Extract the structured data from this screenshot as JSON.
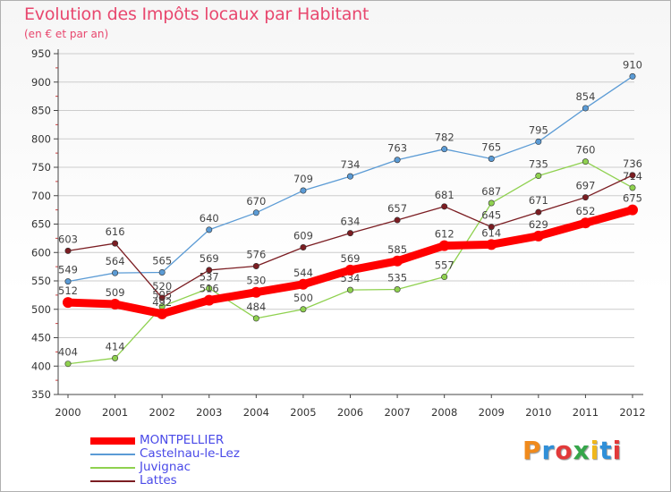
{
  "title": "Evolution des Impôts locaux par Habitant",
  "subtitle": "(en € et par an)",
  "logo_text": "Proxiti",
  "colors": {
    "title": "#e8476e",
    "legend_text": "#4a4ae8",
    "axis": "#444444",
    "grid": "#cccccc"
  },
  "chart_data": {
    "type": "line",
    "title": "Evolution des Impôts locaux par Habitant",
    "subtitle": "(en € et par an)",
    "xlabel": "",
    "ylabel": "",
    "ylim": [
      350,
      950
    ],
    "yticks": [
      350,
      400,
      450,
      500,
      550,
      600,
      650,
      700,
      750,
      800,
      850,
      900,
      950
    ],
    "grid": true,
    "legend_position": "bottom-left",
    "categories": [
      "2000",
      "2001",
      "2002",
      "2003",
      "2004",
      "2005",
      "2006",
      "2007",
      "2008",
      "2009",
      "2010",
      "2011",
      "2012"
    ],
    "series": [
      {
        "name": "MONTPELLIER",
        "color": "#ff0000",
        "emphasis": true,
        "values": [
          512,
          509,
          492,
          516,
          530,
          544,
          569,
          585,
          612,
          614,
          629,
          652,
          675
        ],
        "labels": [
          "512",
          "509",
          "492",
          "516",
          "530",
          "544",
          "569",
          "585",
          "612",
          "614",
          "629",
          "652",
          "675"
        ]
      },
      {
        "name": "Castelnau-le-Lez",
        "color": "#5b9bd5",
        "emphasis": false,
        "values": [
          549,
          564,
          565,
          640,
          670,
          709,
          734,
          763,
          782,
          765,
          795,
          854,
          910
        ],
        "labels": [
          "549",
          "564",
          "565",
          "640",
          "670",
          "709",
          "734",
          "763",
          "782",
          "765",
          "795",
          "854",
          "910"
        ]
      },
      {
        "name": "Juvignac",
        "color": "#8fd14f",
        "emphasis": false,
        "values": [
          404,
          414,
          505,
          537,
          484,
          500,
          534,
          535,
          557,
          687,
          735,
          760,
          714
        ],
        "labels": [
          "404",
          "414",
          "505",
          "537",
          "484",
          "500",
          "534",
          "535",
          "557",
          "687",
          "735",
          "760",
          "714"
        ]
      },
      {
        "name": "Lattes",
        "color": "#7b1d22",
        "emphasis": false,
        "values": [
          603,
          616,
          520,
          569,
          576,
          609,
          634,
          657,
          681,
          645,
          671,
          697,
          736
        ],
        "labels": [
          "603",
          "616",
          "520",
          "569",
          "576",
          "609",
          "634",
          "657",
          "681",
          "645",
          "671",
          "697",
          "736"
        ]
      }
    ]
  }
}
